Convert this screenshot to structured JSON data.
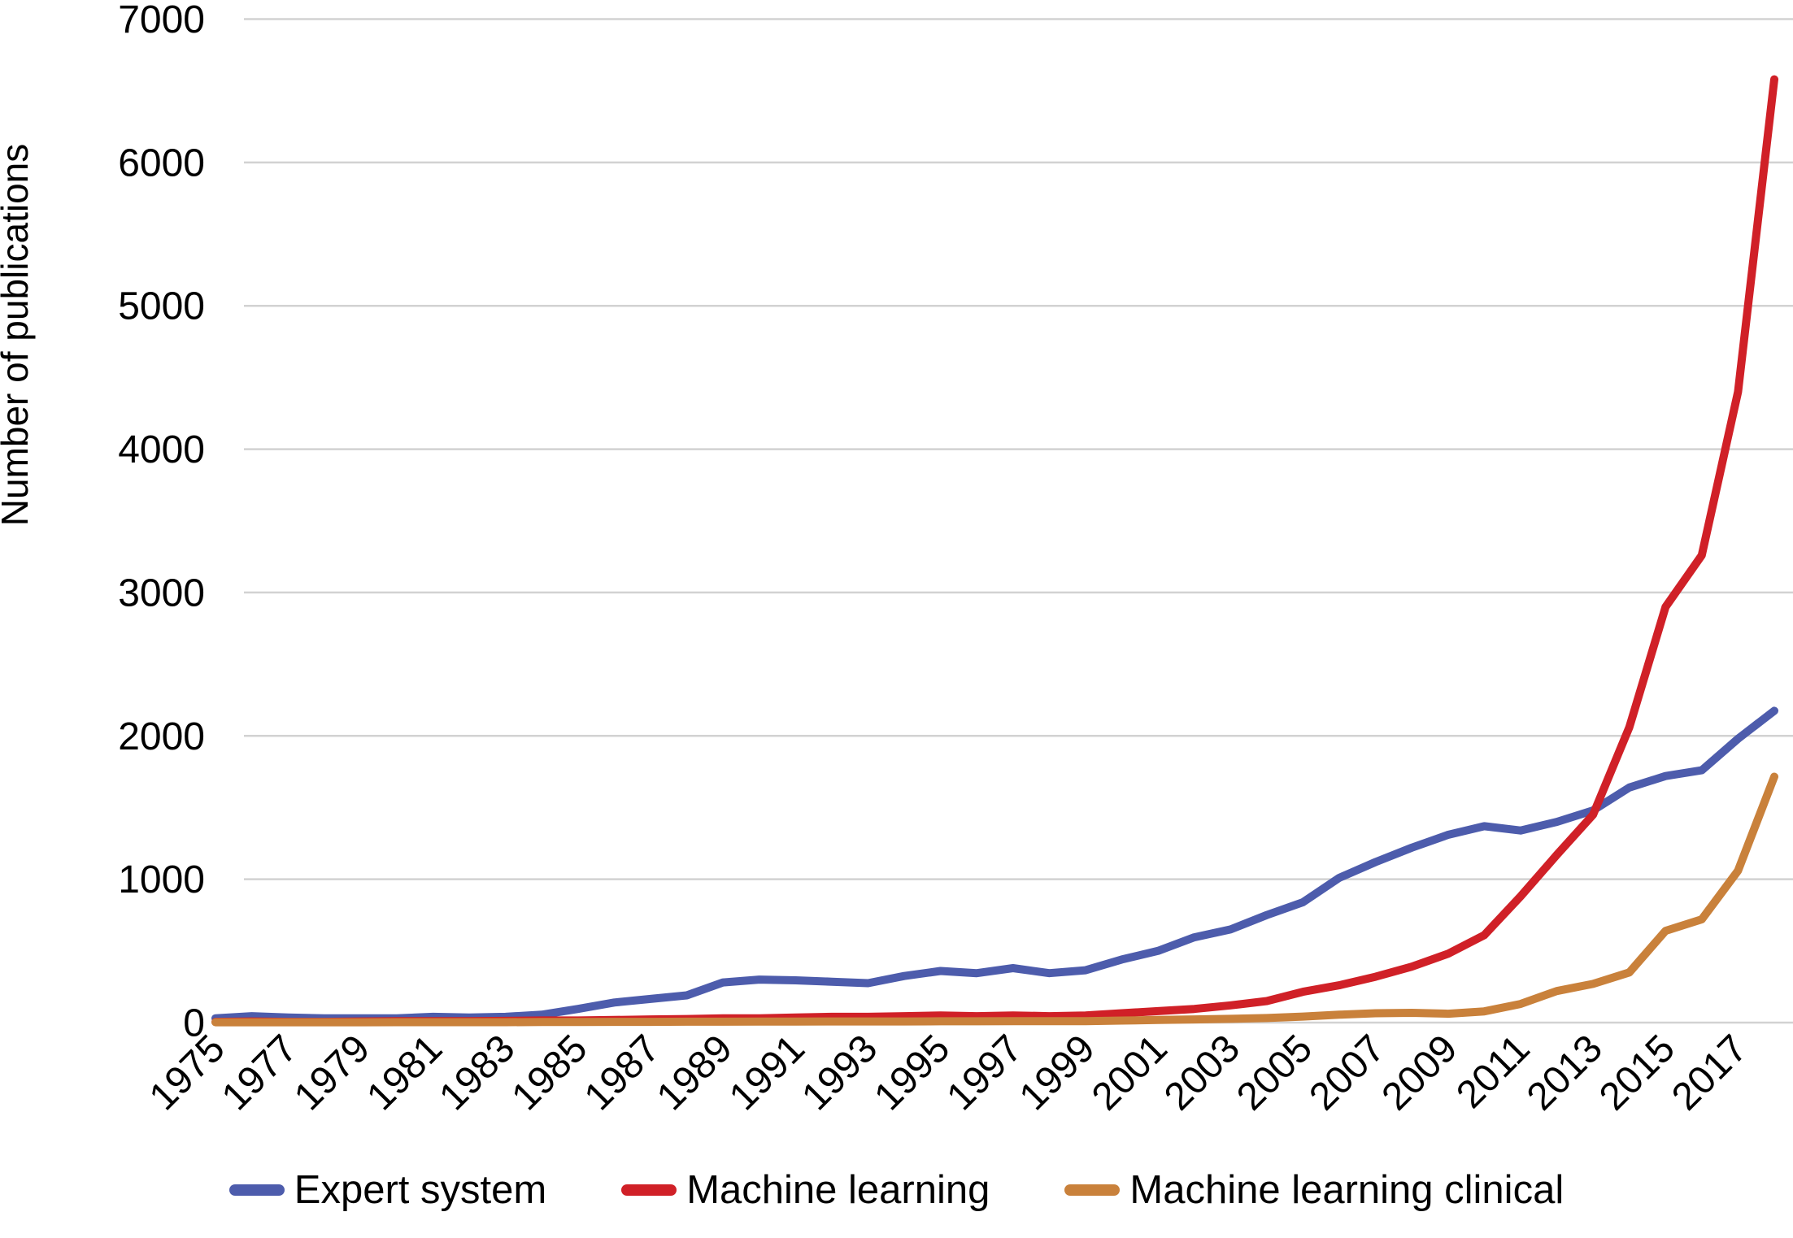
{
  "chart_data": {
    "type": "line",
    "title": "",
    "xlabel": "",
    "ylabel": "Number of publications",
    "ylim": [
      0,
      7000
    ],
    "y_ticks": [
      0,
      1000,
      2000,
      3000,
      4000,
      5000,
      6000,
      7000
    ],
    "x_tick_labels": [
      "1975",
      "1977",
      "1979",
      "1981",
      "1983",
      "1985",
      "1987",
      "1989",
      "1991",
      "1993",
      "1995",
      "1997",
      "1999",
      "2001",
      "2003",
      "2005",
      "2007",
      "2009",
      "2011",
      "2013",
      "2015",
      "2017"
    ],
    "x": [
      1975,
      1976,
      1977,
      1978,
      1979,
      1980,
      1981,
      1982,
      1983,
      1984,
      1985,
      1986,
      1987,
      1988,
      1989,
      1990,
      1991,
      1992,
      1993,
      1994,
      1995,
      1996,
      1997,
      1998,
      1999,
      2000,
      2001,
      2002,
      2003,
      2004,
      2005,
      2006,
      2007,
      2008,
      2009,
      2010,
      2011,
      2012,
      2013,
      2014,
      2015,
      2016,
      2017,
      2018
    ],
    "grid": true,
    "grid_color": "#d2d2d2",
    "background_color": "#ffffff",
    "legend_position": "bottom",
    "series": [
      {
        "name": "Expert system",
        "color": "#4d5cac",
        "values": [
          30,
          45,
          35,
          30,
          30,
          30,
          40,
          35,
          40,
          55,
          95,
          140,
          165,
          190,
          280,
          300,
          295,
          285,
          275,
          325,
          360,
          345,
          380,
          345,
          365,
          440,
          500,
          595,
          650,
          750,
          840,
          1010,
          1120,
          1220,
          1310,
          1370,
          1340,
          1400,
          1480,
          1640,
          1720,
          1760,
          1980,
          2175
        ]
      },
      {
        "name": "Machine learning",
        "color": "#d02027",
        "values": [
          5,
          8,
          5,
          5,
          8,
          10,
          10,
          10,
          12,
          15,
          15,
          18,
          22,
          25,
          30,
          30,
          35,
          40,
          40,
          45,
          50,
          45,
          50,
          45,
          50,
          65,
          80,
          95,
          120,
          150,
          215,
          260,
          320,
          390,
          480,
          610,
          880,
          1170,
          1450,
          2060,
          2900,
          3260,
          4400,
          6580
        ]
      },
      {
        "name": "Machine learning clinical",
        "color": "#c9813b",
        "values": [
          2,
          2,
          2,
          2,
          2,
          3,
          3,
          3,
          3,
          4,
          4,
          5,
          5,
          6,
          6,
          7,
          7,
          8,
          8,
          8,
          9,
          9,
          10,
          10,
          10,
          14,
          18,
          22,
          26,
          32,
          42,
          55,
          65,
          68,
          62,
          78,
          130,
          220,
          270,
          350,
          640,
          720,
          1060,
          1715
        ]
      }
    ]
  }
}
